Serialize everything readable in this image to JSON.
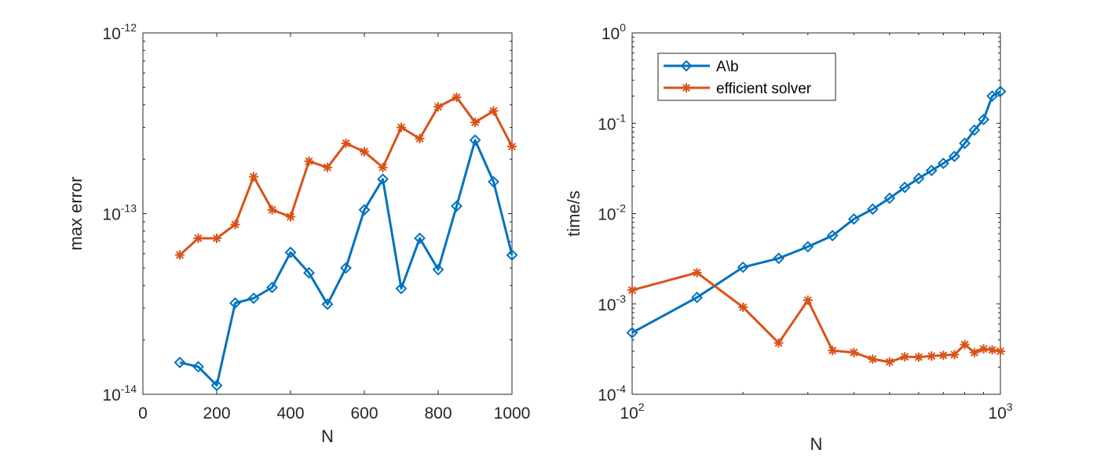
{
  "chart_data": [
    {
      "type": "line",
      "xlabel": "N",
      "ylabel": "max error",
      "xscale": "linear",
      "yscale": "log",
      "xlim": [
        0,
        1000
      ],
      "ylim": [
        1e-14,
        1e-12
      ],
      "xticks": [
        0,
        200,
        400,
        600,
        800,
        1000
      ],
      "xtick_labels": [
        "0",
        "200",
        "400",
        "600",
        "800",
        "1000"
      ],
      "yticks": [
        1e-14,
        1e-13,
        1e-12
      ],
      "ytick_labels": [
        {
          "base": "10",
          "exp": "-14"
        },
        {
          "base": "10",
          "exp": "-13"
        },
        {
          "base": "10",
          "exp": "-12"
        }
      ],
      "grid": false,
      "series": [
        {
          "color": "#0072BD",
          "marker": "diamond",
          "x": [
            100,
            150,
            200,
            250,
            300,
            350,
            400,
            450,
            500,
            550,
            600,
            650,
            700,
            750,
            800,
            850,
            900,
            950,
            1000
          ],
          "y": [
            1.5e-14,
            1.42e-14,
            1.12e-14,
            3.2e-14,
            3.4e-14,
            3.9e-14,
            6.1e-14,
            4.7e-14,
            3.15e-14,
            5e-14,
            1.05e-13,
            1.55e-13,
            3.85e-14,
            7.3e-14,
            4.9e-14,
            1.1e-13,
            2.55e-13,
            1.5e-13,
            5.9e-14
          ]
        },
        {
          "color": "#D95319",
          "marker": "asterisk",
          "x": [
            100,
            150,
            200,
            250,
            300,
            350,
            400,
            450,
            500,
            550,
            600,
            650,
            700,
            750,
            800,
            850,
            900,
            950,
            1000
          ],
          "y": [
            5.9e-14,
            7.3e-14,
            7.3e-14,
            8.7e-14,
            1.6e-13,
            1.05e-13,
            9.6e-14,
            1.95e-13,
            1.8e-13,
            2.45e-13,
            2.2e-13,
            1.8e-13,
            3e-13,
            2.6e-13,
            3.9e-13,
            4.4e-13,
            3.2e-13,
            3.7e-13,
            2.35e-13
          ]
        }
      ]
    },
    {
      "type": "line",
      "xlabel": "N",
      "ylabel": "time/s",
      "xscale": "log",
      "yscale": "log",
      "xlim": [
        100,
        1000
      ],
      "ylim": [
        0.0001,
        1
      ],
      "xticks": [
        100,
        1000
      ],
      "xtick_labels": [
        {
          "base": "10",
          "exp": "2"
        },
        {
          "base": "10",
          "exp": "3"
        }
      ],
      "yticks": [
        0.0001,
        0.001,
        0.01,
        0.1,
        1
      ],
      "ytick_labels": [
        {
          "base": "10",
          "exp": "-4"
        },
        {
          "base": "10",
          "exp": "-3"
        },
        {
          "base": "10",
          "exp": "-2"
        },
        {
          "base": "10",
          "exp": "-1"
        },
        {
          "base": "10",
          "exp": "0"
        }
      ],
      "grid": false,
      "legend_position": "top-left",
      "series": [
        {
          "name": "A\\b",
          "color": "#0072BD",
          "marker": "diamond",
          "x": [
            100,
            150,
            200,
            250,
            300,
            350,
            400,
            450,
            500,
            550,
            600,
            650,
            700,
            750,
            800,
            850,
            900,
            950,
            1000
          ],
          "y": [
            0.00048,
            0.00118,
            0.00255,
            0.0032,
            0.0043,
            0.0057,
            0.0087,
            0.0112,
            0.0148,
            0.0195,
            0.0245,
            0.03,
            0.036,
            0.043,
            0.06,
            0.084,
            0.11,
            0.2,
            0.225
          ]
        },
        {
          "name": "efficient solver",
          "color": "#D95319",
          "marker": "asterisk",
          "x": [
            100,
            150,
            200,
            250,
            300,
            350,
            400,
            450,
            500,
            550,
            600,
            650,
            700,
            750,
            800,
            850,
            900,
            950,
            1000
          ],
          "y": [
            0.00142,
            0.00222,
            0.00092,
            0.00037,
            0.0011,
            0.000305,
            0.00029,
            0.000245,
            0.000228,
            0.00026,
            0.000258,
            0.000265,
            0.00027,
            0.000275,
            0.000355,
            0.00029,
            0.000318,
            0.00031,
            0.0003
          ]
        }
      ]
    }
  ]
}
